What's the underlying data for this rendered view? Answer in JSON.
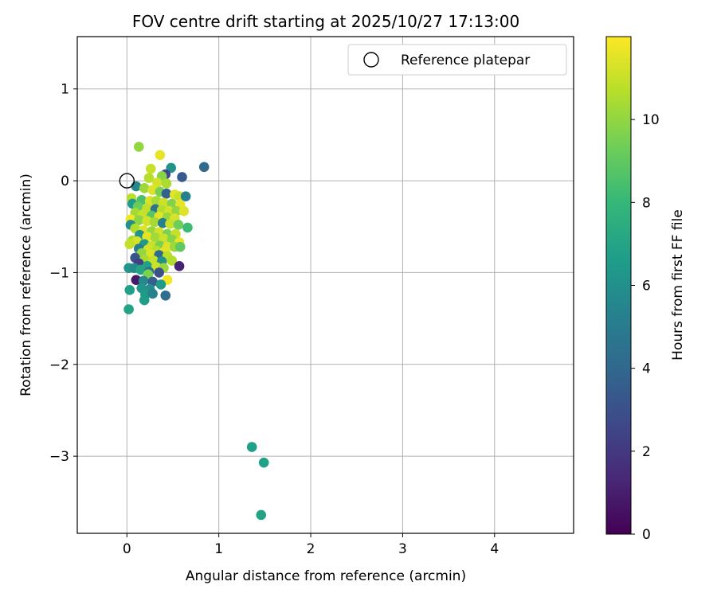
{
  "chart_data": {
    "type": "scatter",
    "title": "FOV centre drift starting at 2025/10/27 17:13:00",
    "xlabel": "Angular distance from reference (arcmin)",
    "ylabel": "Rotation from reference (arcmin)",
    "xlim": [
      -0.54,
      4.86
    ],
    "ylim": [
      -3.84,
      1.57
    ],
    "xticks": [
      0,
      1,
      2,
      3,
      4
    ],
    "yticks": [
      1,
      0,
      -1,
      -2,
      -3
    ],
    "grid": true,
    "legend": {
      "location": "upper right",
      "entries": [
        "Reference platepar"
      ]
    },
    "reference_point": {
      "x": 0,
      "y": 0,
      "label": "Reference platepar"
    },
    "colorbar": {
      "label": "Hours from first FF file",
      "min": 0,
      "max": 12,
      "ticks": [
        0,
        2,
        4,
        6,
        8,
        10
      ],
      "colormap": "viridis",
      "colors": [
        "#440154",
        "#482878",
        "#3e4989",
        "#31688e",
        "#26828e",
        "#1f9e89",
        "#35b779",
        "#6ece58",
        "#b5de2b",
        "#fde725"
      ]
    },
    "points": [
      {
        "x": 0.84,
        "y": 0.15,
        "t": 4.2
      },
      {
        "x": 0.6,
        "y": 0.04,
        "t": 3.4
      },
      {
        "x": 0.48,
        "y": 0.14,
        "t": 6.1
      },
      {
        "x": 0.13,
        "y": 0.37,
        "t": 10.0
      },
      {
        "x": 0.36,
        "y": 0.28,
        "t": 11.6
      },
      {
        "x": 0.26,
        "y": 0.13,
        "t": 11.0
      },
      {
        "x": 0.42,
        "y": 0.07,
        "t": 2.6
      },
      {
        "x": 0.38,
        "y": 0.05,
        "t": 9.8
      },
      {
        "x": 0.24,
        "y": 0.03,
        "t": 10.7
      },
      {
        "x": 0.33,
        "y": -0.02,
        "t": 11.2
      },
      {
        "x": 0.43,
        "y": -0.03,
        "t": 10.5
      },
      {
        "x": 0.1,
        "y": -0.06,
        "t": 5.5
      },
      {
        "x": 0.19,
        "y": -0.08,
        "t": 10.2
      },
      {
        "x": 0.28,
        "y": -0.1,
        "t": 11.4
      },
      {
        "x": 0.36,
        "y": -0.12,
        "t": 9.5
      },
      {
        "x": 0.43,
        "y": -0.14,
        "t": 3.8
      },
      {
        "x": 0.52,
        "y": -0.15,
        "t": 11.5
      },
      {
        "x": 0.57,
        "y": -0.17,
        "t": 11.0
      },
      {
        "x": 0.64,
        "y": -0.17,
        "t": 5.3
      },
      {
        "x": 0.05,
        "y": -0.19,
        "t": 10.8
      },
      {
        "x": 0.16,
        "y": -0.21,
        "t": 8.5
      },
      {
        "x": 0.25,
        "y": -0.22,
        "t": 11.3
      },
      {
        "x": 0.32,
        "y": -0.22,
        "t": 10.4
      },
      {
        "x": 0.4,
        "y": -0.24,
        "t": 11.1
      },
      {
        "x": 0.49,
        "y": -0.25,
        "t": 9.7
      },
      {
        "x": 0.58,
        "y": -0.26,
        "t": 11.6
      },
      {
        "x": 0.06,
        "y": -0.25,
        "t": 6.5
      },
      {
        "x": 0.12,
        "y": -0.28,
        "t": 9.2
      },
      {
        "x": 0.22,
        "y": -0.3,
        "t": 10.9
      },
      {
        "x": 0.31,
        "y": -0.31,
        "t": 4.5
      },
      {
        "x": 0.38,
        "y": -0.32,
        "t": 10.6
      },
      {
        "x": 0.46,
        "y": -0.33,
        "t": 11.2
      },
      {
        "x": 0.54,
        "y": -0.33,
        "t": 10.0
      },
      {
        "x": 0.62,
        "y": -0.33,
        "t": 11.4
      },
      {
        "x": 0.09,
        "y": -0.35,
        "t": 10.3
      },
      {
        "x": 0.17,
        "y": -0.37,
        "t": 11.0
      },
      {
        "x": 0.27,
        "y": -0.38,
        "t": 8.8
      },
      {
        "x": 0.35,
        "y": -0.39,
        "t": 11.5
      },
      {
        "x": 0.44,
        "y": -0.4,
        "t": 10.1
      },
      {
        "x": 0.52,
        "y": -0.41,
        "t": 11.3
      },
      {
        "x": 0.04,
        "y": -0.42,
        "t": 11.8
      },
      {
        "x": 0.13,
        "y": -0.43,
        "t": 9.9
      },
      {
        "x": 0.22,
        "y": -0.44,
        "t": 11.2
      },
      {
        "x": 0.3,
        "y": -0.45,
        "t": 10.4
      },
      {
        "x": 0.39,
        "y": -0.46,
        "t": 5.2
      },
      {
        "x": 0.47,
        "y": -0.47,
        "t": 11.0
      },
      {
        "x": 0.56,
        "y": -0.48,
        "t": 9.3
      },
      {
        "x": 0.04,
        "y": -0.48,
        "t": 5.9
      },
      {
        "x": 0.66,
        "y": -0.51,
        "t": 8.2
      },
      {
        "x": 0.09,
        "y": -0.52,
        "t": 10.6
      },
      {
        "x": 0.18,
        "y": -0.54,
        "t": 11.4
      },
      {
        "x": 0.27,
        "y": -0.55,
        "t": 10.1
      },
      {
        "x": 0.35,
        "y": -0.56,
        "t": 11.2
      },
      {
        "x": 0.44,
        "y": -0.58,
        "t": 9.6
      },
      {
        "x": 0.53,
        "y": -0.58,
        "t": 11.0
      },
      {
        "x": 0.14,
        "y": -0.59,
        "t": 6.2
      },
      {
        "x": 0.22,
        "y": -0.61,
        "t": 11.5
      },
      {
        "x": 0.31,
        "y": -0.62,
        "t": 10.3
      },
      {
        "x": 0.4,
        "y": -0.63,
        "t": 11.1
      },
      {
        "x": 0.49,
        "y": -0.64,
        "t": 9.8
      },
      {
        "x": 0.06,
        "y": -0.65,
        "t": 10.5
      },
      {
        "x": 0.11,
        "y": -0.66,
        "t": 11.3
      },
      {
        "x": 0.57,
        "y": -0.67,
        "t": 11.6
      },
      {
        "x": 0.03,
        "y": -0.69,
        "t": 10.9
      },
      {
        "x": 0.19,
        "y": -0.69,
        "t": 6.4
      },
      {
        "x": 0.27,
        "y": -0.71,
        "t": 11.0
      },
      {
        "x": 0.36,
        "y": -0.71,
        "t": 9.5
      },
      {
        "x": 0.44,
        "y": -0.72,
        "t": 11.4
      },
      {
        "x": 0.52,
        "y": -0.72,
        "t": 10.2
      },
      {
        "x": 0.58,
        "y": -0.72,
        "t": 9.0
      },
      {
        "x": 0.13,
        "y": -0.74,
        "t": 5.1
      },
      {
        "x": 0.23,
        "y": -0.75,
        "t": 11.2
      },
      {
        "x": 0.32,
        "y": -0.76,
        "t": 10.7
      },
      {
        "x": 0.41,
        "y": -0.77,
        "t": 11.5
      },
      {
        "x": 0.16,
        "y": -0.79,
        "t": 10.0
      },
      {
        "x": 0.26,
        "y": -0.8,
        "t": 11.3
      },
      {
        "x": 0.35,
        "y": -0.81,
        "t": 4.1
      },
      {
        "x": 0.44,
        "y": -0.82,
        "t": 10.8
      },
      {
        "x": 0.09,
        "y": -0.84,
        "t": 3.1
      },
      {
        "x": 0.19,
        "y": -0.86,
        "t": 10.4
      },
      {
        "x": 0.29,
        "y": -0.87,
        "t": 11.0
      },
      {
        "x": 0.38,
        "y": -0.88,
        "t": 6.0
      },
      {
        "x": 0.49,
        "y": -0.87,
        "t": 10.6
      },
      {
        "x": 0.57,
        "y": -0.93,
        "t": 1.1
      },
      {
        "x": 0.13,
        "y": -0.9,
        "t": 2.3
      },
      {
        "x": 0.22,
        "y": -0.93,
        "t": 6.8
      },
      {
        "x": 0.32,
        "y": -0.94,
        "t": 11.1
      },
      {
        "x": 0.4,
        "y": -0.95,
        "t": 10.2
      },
      {
        "x": 0.02,
        "y": -0.95,
        "t": 6.3
      },
      {
        "x": 0.08,
        "y": -0.95,
        "t": 5.8
      },
      {
        "x": 0.15,
        "y": -0.97,
        "t": 7.0
      },
      {
        "x": 0.24,
        "y": -0.99,
        "t": 4.6
      },
      {
        "x": 0.35,
        "y": -1.0,
        "t": 3.0
      },
      {
        "x": 0.23,
        "y": -1.02,
        "t": 9.6
      },
      {
        "x": 0.1,
        "y": -1.08,
        "t": 0.8
      },
      {
        "x": 0.18,
        "y": -1.09,
        "t": 5.6
      },
      {
        "x": 0.28,
        "y": -1.1,
        "t": 3.6
      },
      {
        "x": 0.44,
        "y": -1.08,
        "t": 11.8
      },
      {
        "x": 0.37,
        "y": -1.13,
        "t": 6.5
      },
      {
        "x": 0.16,
        "y": -1.17,
        "t": 6.2
      },
      {
        "x": 0.25,
        "y": -1.18,
        "t": 5.9
      },
      {
        "x": 0.03,
        "y": -1.19,
        "t": 6.7
      },
      {
        "x": 0.2,
        "y": -1.24,
        "t": 6.4
      },
      {
        "x": 0.28,
        "y": -1.23,
        "t": 5.4
      },
      {
        "x": 0.42,
        "y": -1.25,
        "t": 4.3
      },
      {
        "x": 0.19,
        "y": -1.3,
        "t": 6.6
      },
      {
        "x": 0.02,
        "y": -1.4,
        "t": 6.9
      },
      {
        "x": 1.36,
        "y": -2.9,
        "t": 6.7
      },
      {
        "x": 1.49,
        "y": -3.07,
        "t": 6.8
      },
      {
        "x": 1.46,
        "y": -3.64,
        "t": 6.9
      }
    ]
  }
}
